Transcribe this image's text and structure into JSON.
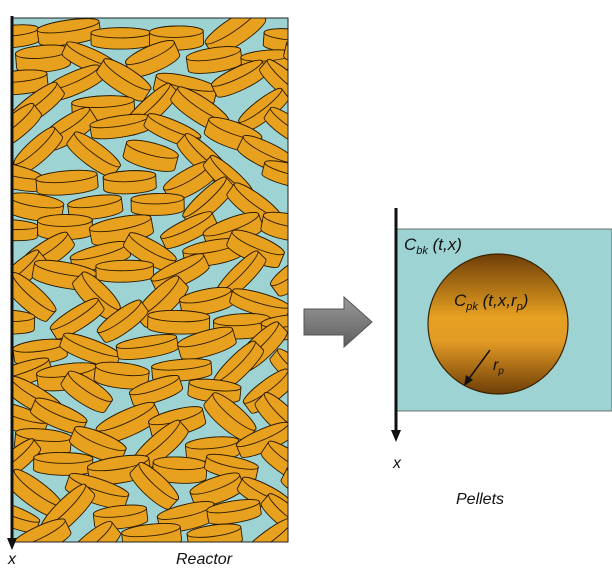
{
  "reactor": {
    "axis_label": "x",
    "caption": "Reactor"
  },
  "pellet": {
    "bulk_conc_main": "C",
    "bulk_conc_sub": "bk",
    "bulk_conc_args": " (t,x)",
    "pellet_conc_main": "C",
    "pellet_conc_sub": "pk",
    "pellet_conc_args_a": " (t,x,r",
    "pellet_conc_args_sub": "p",
    "pellet_conc_args_b": ")",
    "radius_main": "r",
    "radius_sub": "p",
    "axis_label": "x",
    "caption": "Pellets"
  },
  "colors": {
    "fluid": "#9dd3d3",
    "pellet": "#e8a11e",
    "pellet_edge": "#2b1a00",
    "pellet_core_light": "#e39b25",
    "pellet_core_dark": "#6e3e08",
    "arrow_gray": "#7a7a7a",
    "axis": "#111111"
  }
}
